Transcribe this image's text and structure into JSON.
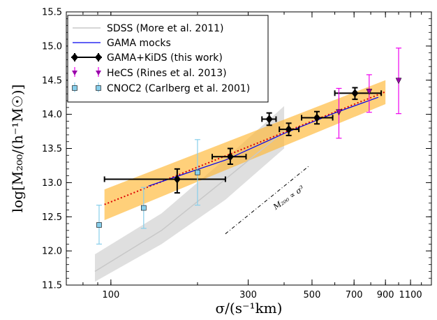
{
  "chart_data": {
    "type": "scatter",
    "xlabel": "σ/(s⁻¹km)",
    "ylabel": "log[M₂₀₀/(h⁻¹M☉)]",
    "xscale": "log",
    "xlim": [
      70,
      1300
    ],
    "ylim": [
      11.5,
      15.5
    ],
    "x_ticks": [
      100,
      300,
      500,
      700,
      900,
      1100
    ],
    "y_ticks": [
      11.5,
      12.0,
      12.5,
      13.0,
      13.5,
      14.0,
      14.5,
      15.0,
      15.5
    ],
    "grid": false,
    "legend_position": "top-left",
    "legend": [
      {
        "key": "sdss",
        "label": "SDSS (More et al. 2011)",
        "color": "#c8c8c8"
      },
      {
        "key": "gama_mocks",
        "label": "GAMA mocks",
        "color": "#0000ee"
      },
      {
        "key": "gama_kids",
        "label": "GAMA+KiDS (this work)",
        "color": "#000000"
      },
      {
        "key": "hecs",
        "label": "HeCS (Rines et al. 2013)",
        "color": "#ee00ee"
      },
      {
        "key": "cnoc2",
        "label": "CNOC2 (Carlberg et al. 2001)",
        "color": "#87ceeb"
      }
    ],
    "series": [
      {
        "key": "gama_kids",
        "name": "GAMA+KiDS (this work)",
        "color": "#000000",
        "points": [
          {
            "x": 170,
            "y": 13.05,
            "xerr": [
              95,
              250
            ],
            "yerr": [
              12.85,
              13.2
            ]
          },
          {
            "x": 260,
            "y": 13.38,
            "xerr": [
              225,
              295
            ],
            "yerr": [
              13.27,
              13.5
            ]
          },
          {
            "x": 355,
            "y": 13.93,
            "xerr": [
              335,
              375
            ],
            "yerr": [
              13.84,
              14.02
            ]
          },
          {
            "x": 415,
            "y": 13.78,
            "xerr": [
              385,
              450
            ],
            "yerr": [
              13.69,
              13.87
            ]
          },
          {
            "x": 520,
            "y": 13.95,
            "xerr": [
              460,
              590
            ],
            "yerr": [
              13.86,
              14.04
            ]
          },
          {
            "x": 705,
            "y": 14.31,
            "xerr": [
              600,
              870
            ],
            "yerr": [
              14.22,
              14.39
            ]
          }
        ]
      },
      {
        "key": "hecs",
        "name": "HeCS (Rines et al. 2013)",
        "color": "#ee00ee",
        "points": [
          {
            "x": 620,
            "y": 14.03,
            "yerr": [
              13.65,
              14.38
            ]
          },
          {
            "x": 790,
            "y": 14.33,
            "yerr": [
              14.03,
              14.58
            ]
          },
          {
            "x": 1000,
            "y": 14.49,
            "yerr": [
              14.01,
              14.97
            ]
          }
        ]
      },
      {
        "key": "cnoc2",
        "name": "CNOC2 (Carlberg et al. 2001)",
        "color": "#87ceeb",
        "points": [
          {
            "x": 91,
            "y": 12.38,
            "yerr": [
              12.1,
              12.67
            ]
          },
          {
            "x": 130,
            "y": 12.63,
            "yerr": [
              12.33,
              12.93
            ]
          },
          {
            "x": 200,
            "y": 13.15,
            "yerr": [
              12.67,
              13.63
            ]
          }
        ]
      }
    ],
    "lines": [
      {
        "key": "gama_mocks",
        "name": "GAMA mocks",
        "color": "#0000ee",
        "x": [
          135,
          250,
          400,
          600,
          850
        ],
        "y": [
          12.95,
          13.33,
          13.72,
          14.02,
          14.25
        ]
      },
      {
        "key": "fit",
        "color": "#dd0000",
        "style": "dotted",
        "x": [
          95,
          900
        ],
        "y": [
          12.68,
          14.33
        ],
        "band": [
          {
            "x": 95,
            "lo": 12.45,
            "hi": 12.9
          },
          {
            "x": 900,
            "lo": 14.15,
            "hi": 14.5
          }
        ]
      },
      {
        "key": "sdss",
        "name": "SDSS (More et al. 2011)",
        "color": "#c8c8c8",
        "x": [
          88,
          150,
          250,
          400
        ],
        "y": [
          11.7,
          12.3,
          13.05,
          13.75
        ],
        "band": [
          {
            "x": 88,
            "lo": 11.55,
            "hi": 11.95
          },
          {
            "x": 150,
            "lo": 12.1,
            "hi": 12.55
          },
          {
            "x": 250,
            "lo": 12.75,
            "hi": 13.35
          },
          {
            "x": 400,
            "lo": 13.5,
            "hi": 14.12
          }
        ]
      }
    ],
    "annotations": [
      {
        "text": "M₂₀₀ ∝ σ³",
        "x": 420,
        "y": 12.75,
        "rotate": -35
      },
      {
        "type": "dashdot_line",
        "x": [
          250,
          490
        ],
        "y": [
          12.25,
          13.25
        ]
      }
    ]
  }
}
